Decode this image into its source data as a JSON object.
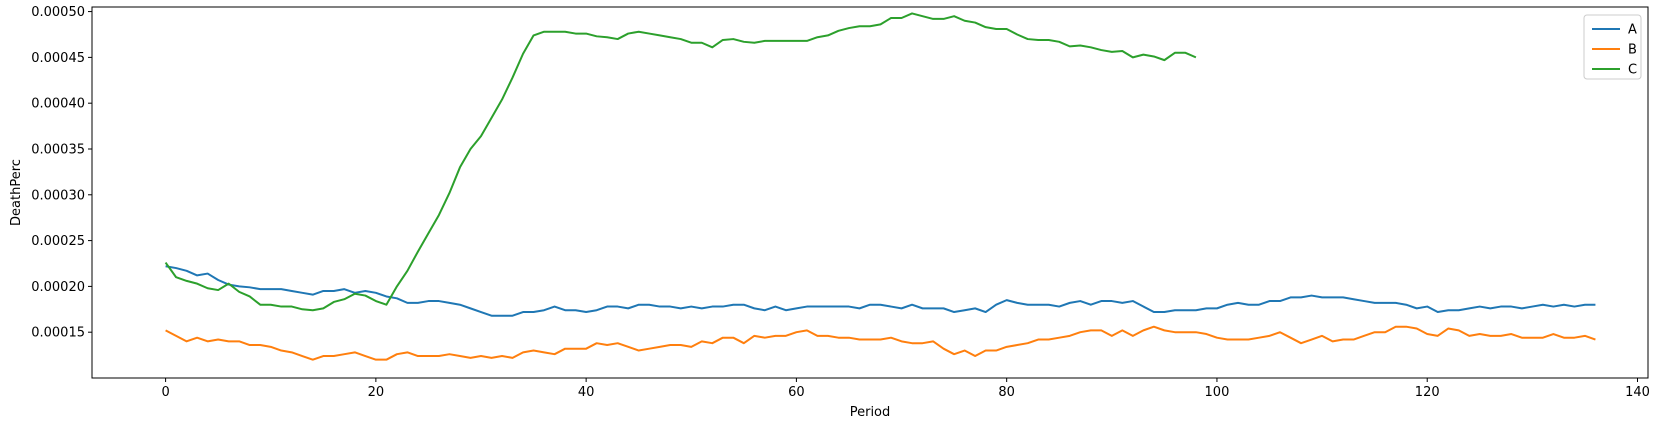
{
  "chart_data": {
    "type": "line",
    "title": "",
    "xlabel": "Period",
    "ylabel": "DeathPerc",
    "xlim": [
      -7,
      141
    ],
    "ylim": [
      0.0001,
      0.000505
    ],
    "x_ticks": [
      0,
      20,
      40,
      60,
      80,
      100,
      120,
      140
    ],
    "x_tick_labels": [
      "0",
      "20",
      "40",
      "60",
      "80",
      "100",
      "120",
      "140"
    ],
    "y_ticks": [
      0.00015,
      0.0002,
      0.00025,
      0.0003,
      0.00035,
      0.0004,
      0.00045,
      0.0005
    ],
    "y_tick_labels": [
      "0.00015",
      "0.00020",
      "0.00025",
      "0.00030",
      "0.00035",
      "0.00040",
      "0.00045",
      "0.00050"
    ],
    "grid": false,
    "legend_position": "top-right",
    "series": [
      {
        "name": "A",
        "color": "#1f77b4",
        "x_start": 0,
        "values": [
          0.000222,
          0.00022,
          0.000217,
          0.000212,
          0.000214,
          0.000207,
          0.000202,
          0.0002,
          0.000199,
          0.000197,
          0.000197,
          0.000197,
          0.000195,
          0.000193,
          0.000191,
          0.000195,
          0.000195,
          0.000197,
          0.000193,
          0.000195,
          0.000193,
          0.000189,
          0.000187,
          0.000182,
          0.000182,
          0.000184,
          0.000184,
          0.000182,
          0.00018,
          0.000176,
          0.000172,
          0.000168,
          0.000168,
          0.000168,
          0.000172,
          0.000172,
          0.000174,
          0.000178,
          0.000174,
          0.000174,
          0.000172,
          0.000174,
          0.000178,
          0.000178,
          0.000176,
          0.00018,
          0.00018,
          0.000178,
          0.000178,
          0.000176,
          0.000178,
          0.000176,
          0.000178,
          0.000178,
          0.00018,
          0.00018,
          0.000176,
          0.000174,
          0.000178,
          0.000174,
          0.000176,
          0.000178,
          0.000178,
          0.000178,
          0.000178,
          0.000178,
          0.000176,
          0.00018,
          0.00018,
          0.000178,
          0.000176,
          0.00018,
          0.000176,
          0.000176,
          0.000176,
          0.000172,
          0.000174,
          0.000176,
          0.000172,
          0.00018,
          0.000185,
          0.000182,
          0.00018,
          0.00018,
          0.00018,
          0.000178,
          0.000182,
          0.000184,
          0.00018,
          0.000184,
          0.000184,
          0.000182,
          0.000184,
          0.000178,
          0.000172,
          0.000172,
          0.000174,
          0.000174,
          0.000174,
          0.000176,
          0.000176,
          0.00018,
          0.000182,
          0.00018,
          0.00018,
          0.000184,
          0.000184,
          0.000188,
          0.000188,
          0.00019,
          0.000188,
          0.000188,
          0.000188,
          0.000186,
          0.000184,
          0.000182,
          0.000182,
          0.000182,
          0.00018,
          0.000176,
          0.000178,
          0.000172,
          0.000174,
          0.000174,
          0.000176,
          0.000178,
          0.000176,
          0.000178,
          0.000178,
          0.000176,
          0.000178,
          0.00018,
          0.000178,
          0.00018,
          0.000178,
          0.00018,
          0.00018
        ]
      },
      {
        "name": "B",
        "color": "#ff7f0e",
        "x_start": 0,
        "values": [
          0.000152,
          0.000146,
          0.00014,
          0.000144,
          0.00014,
          0.000142,
          0.00014,
          0.00014,
          0.000136,
          0.000136,
          0.000134,
          0.00013,
          0.000128,
          0.000124,
          0.00012,
          0.000124,
          0.000124,
          0.000126,
          0.000128,
          0.000124,
          0.00012,
          0.00012,
          0.000126,
          0.000128,
          0.000124,
          0.000124,
          0.000124,
          0.000126,
          0.000124,
          0.000122,
          0.000124,
          0.000122,
          0.000124,
          0.000122,
          0.000128,
          0.00013,
          0.000128,
          0.000126,
          0.000132,
          0.000132,
          0.000132,
          0.000138,
          0.000136,
          0.000138,
          0.000134,
          0.00013,
          0.000132,
          0.000134,
          0.000136,
          0.000136,
          0.000134,
          0.00014,
          0.000138,
          0.000144,
          0.000144,
          0.000138,
          0.000146,
          0.000144,
          0.000146,
          0.000146,
          0.00015,
          0.000152,
          0.000146,
          0.000146,
          0.000144,
          0.000144,
          0.000142,
          0.000142,
          0.000142,
          0.000144,
          0.00014,
          0.000138,
          0.000138,
          0.00014,
          0.000132,
          0.000126,
          0.00013,
          0.000124,
          0.00013,
          0.00013,
          0.000134,
          0.000136,
          0.000138,
          0.000142,
          0.000142,
          0.000144,
          0.000146,
          0.00015,
          0.000152,
          0.000152,
          0.000146,
          0.000152,
          0.000146,
          0.000152,
          0.000156,
          0.000152,
          0.00015,
          0.00015,
          0.00015,
          0.000148,
          0.000144,
          0.000142,
          0.000142,
          0.000142,
          0.000144,
          0.000146,
          0.00015,
          0.000144,
          0.000138,
          0.000142,
          0.000146,
          0.00014,
          0.000142,
          0.000142,
          0.000146,
          0.00015,
          0.00015,
          0.000156,
          0.000156,
          0.000154,
          0.000148,
          0.000146,
          0.000154,
          0.000152,
          0.000146,
          0.000148,
          0.000146,
          0.000146,
          0.000148,
          0.000144,
          0.000144,
          0.000144,
          0.000148,
          0.000144,
          0.000144,
          0.000146,
          0.000142
        ]
      },
      {
        "name": "C",
        "color": "#2ca02c",
        "x_start": 0,
        "values": [
          0.000226,
          0.00021,
          0.000206,
          0.000203,
          0.000198,
          0.000196,
          0.000203,
          0.000194,
          0.000189,
          0.00018,
          0.00018,
          0.000178,
          0.000178,
          0.000175,
          0.000174,
          0.000176,
          0.000183,
          0.000186,
          0.000192,
          0.00019,
          0.000184,
          0.00018,
          0.0002,
          0.000217,
          0.000238,
          0.000258,
          0.000278,
          0.000302,
          0.00033,
          0.00035,
          0.000364,
          0.000384,
          0.000404,
          0.000428,
          0.000454,
          0.000474,
          0.000478,
          0.000478,
          0.000478,
          0.000476,
          0.000476,
          0.000473,
          0.000472,
          0.00047,
          0.000476,
          0.000478,
          0.000476,
          0.000474,
          0.000472,
          0.00047,
          0.000466,
          0.000466,
          0.000461,
          0.000469,
          0.00047,
          0.000467,
          0.000466,
          0.000468,
          0.000468,
          0.000468,
          0.000468,
          0.000468,
          0.000472,
          0.000474,
          0.000479,
          0.000482,
          0.000484,
          0.000484,
          0.000486,
          0.000493,
          0.000493,
          0.000498,
          0.000495,
          0.000492,
          0.000492,
          0.000495,
          0.00049,
          0.000488,
          0.000483,
          0.000481,
          0.000481,
          0.000475,
          0.00047,
          0.000469,
          0.000469,
          0.000467,
          0.000462,
          0.000463,
          0.000461,
          0.000458,
          0.000456,
          0.000457,
          0.00045,
          0.000453,
          0.000451,
          0.000447,
          0.000455,
          0.000455,
          0.00045
        ]
      }
    ]
  }
}
